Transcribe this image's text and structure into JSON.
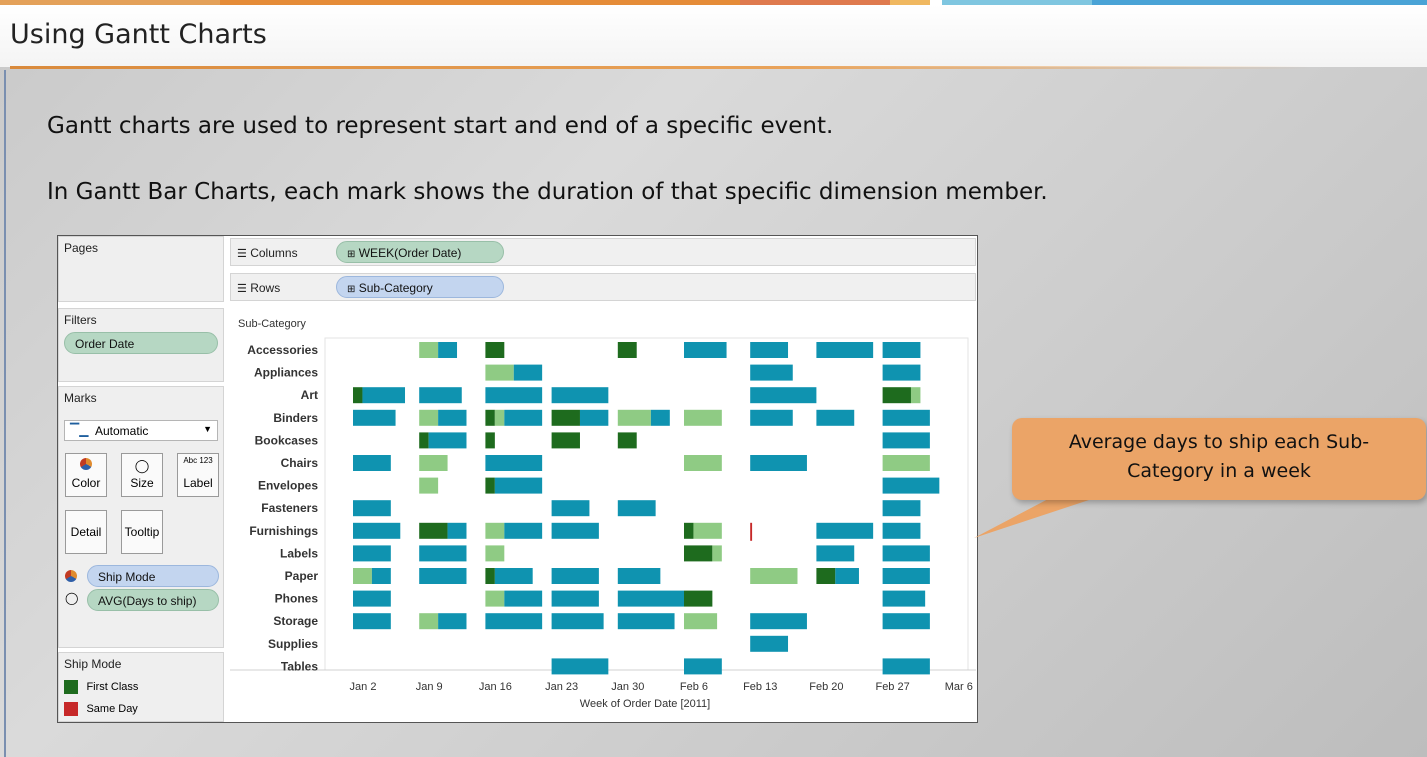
{
  "slide": {
    "title": "Using Gantt Charts",
    "line1": "Gantt charts are used to represent start and end of a specific event.",
    "line2": "In Gantt Bar Charts, each mark shows the duration of that specific dimension member."
  },
  "tableau": {
    "pages_title": "Pages",
    "filters_title": "Filters",
    "filter_pill": "Order Date",
    "marks_title": "Marks",
    "mark_type": "Automatic",
    "buttons": {
      "color": "Color",
      "size": "Size",
      "label": "Label",
      "detail": "Detail",
      "tooltip": "Tooltip"
    },
    "label_icon": "Abc 123",
    "color_pill": "Ship Mode",
    "size_pill": "AVG(Days to ship)",
    "columns_label": "Columns",
    "columns_pill": "WEEK(Order Date)",
    "rows_label": "Rows",
    "rows_pill": "Sub-Category",
    "legend_title": "Ship Mode",
    "legend_items": [
      {
        "label": "First Class",
        "color": "#1e6b1e"
      },
      {
        "label": "Same Day",
        "color": "#c62828"
      }
    ]
  },
  "callout": {
    "line1": "Average days to ship each Sub-",
    "line2": "Category in a week"
  },
  "colors": {
    "first_class": "#1e6b1e",
    "same_day": "#c62828",
    "second_class": "#8fcb84",
    "standard_class": "#0f93b0"
  },
  "chart_data": {
    "type": "gantt",
    "row_header": "Sub-Category",
    "xlabel": "Week of Order Date [2011]",
    "x_ticks": [
      "Jan 2",
      "Jan 9",
      "Jan 16",
      "Jan 23",
      "Jan 30",
      "Feb 6",
      "Feb 13",
      "Feb 20",
      "Feb 27",
      "Mar 6"
    ],
    "categories": [
      "Accessories",
      "Appliances",
      "Art",
      "Binders",
      "Bookcases",
      "Chairs",
      "Envelopes",
      "Fasteners",
      "Furnishings",
      "Labels",
      "Paper",
      "Phones",
      "Storage",
      "Supplies",
      "Tables"
    ],
    "segments_note": "Each bar: week index (0 = Jan 2), start offset and duration in days, ship mode",
    "bars": [
      {
        "row": 0,
        "week": 1,
        "segs": [
          [
            "second_class",
            0,
            2
          ],
          [
            "standard_class",
            2,
            2
          ]
        ]
      },
      {
        "row": 0,
        "week": 2,
        "segs": [
          [
            "first_class",
            0,
            2
          ]
        ]
      },
      {
        "row": 0,
        "week": 4,
        "segs": [
          [
            "first_class",
            0,
            2
          ]
        ]
      },
      {
        "row": 0,
        "week": 5,
        "segs": [
          [
            "standard_class",
            0,
            4.5
          ]
        ]
      },
      {
        "row": 0,
        "week": 6,
        "segs": [
          [
            "standard_class",
            0,
            4
          ]
        ]
      },
      {
        "row": 0,
        "week": 7,
        "segs": [
          [
            "standard_class",
            0,
            6
          ]
        ]
      },
      {
        "row": 0,
        "week": 8,
        "segs": [
          [
            "standard_class",
            0,
            4
          ]
        ]
      },
      {
        "row": 1,
        "week": 2,
        "segs": [
          [
            "second_class",
            0,
            3
          ],
          [
            "standard_class",
            3,
            3
          ]
        ]
      },
      {
        "row": 1,
        "week": 6,
        "segs": [
          [
            "standard_class",
            0,
            4.5
          ]
        ]
      },
      {
        "row": 1,
        "week": 8,
        "segs": [
          [
            "standard_class",
            0,
            4
          ]
        ]
      },
      {
        "row": 2,
        "week": 0,
        "segs": [
          [
            "first_class",
            0,
            1
          ],
          [
            "standard_class",
            1,
            4.5
          ]
        ]
      },
      {
        "row": 2,
        "week": 1,
        "segs": [
          [
            "standard_class",
            0,
            4.5
          ]
        ]
      },
      {
        "row": 2,
        "week": 2,
        "segs": [
          [
            "standard_class",
            0,
            6
          ]
        ]
      },
      {
        "row": 2,
        "week": 3,
        "segs": [
          [
            "standard_class",
            0,
            6
          ]
        ]
      },
      {
        "row": 2,
        "week": 6,
        "segs": [
          [
            "standard_class",
            0,
            7
          ]
        ]
      },
      {
        "row": 2,
        "week": 8,
        "segs": [
          [
            "first_class",
            0,
            3
          ],
          [
            "second_class",
            3,
            1
          ]
        ]
      },
      {
        "row": 3,
        "week": 0,
        "segs": [
          [
            "standard_class",
            0,
            4.5
          ]
        ]
      },
      {
        "row": 3,
        "week": 1,
        "segs": [
          [
            "second_class",
            0,
            2
          ],
          [
            "standard_class",
            2,
            3
          ]
        ]
      },
      {
        "row": 3,
        "week": 2,
        "segs": [
          [
            "first_class",
            0,
            1
          ],
          [
            "second_class",
            1,
            1
          ],
          [
            "standard_class",
            2,
            4
          ]
        ]
      },
      {
        "row": 3,
        "week": 3,
        "segs": [
          [
            "first_class",
            0,
            3
          ],
          [
            "standard_class",
            3,
            3
          ]
        ]
      },
      {
        "row": 3,
        "week": 4,
        "segs": [
          [
            "second_class",
            0,
            3.5
          ],
          [
            "standard_class",
            3.5,
            2
          ]
        ]
      },
      {
        "row": 3,
        "week": 5,
        "segs": [
          [
            "second_class",
            0,
            4
          ]
        ]
      },
      {
        "row": 3,
        "week": 6,
        "segs": [
          [
            "standard_class",
            0,
            4.5
          ]
        ]
      },
      {
        "row": 3,
        "week": 7,
        "segs": [
          [
            "standard_class",
            0,
            4
          ]
        ]
      },
      {
        "row": 3,
        "week": 8,
        "segs": [
          [
            "standard_class",
            0,
            5
          ]
        ]
      },
      {
        "row": 4,
        "week": 1,
        "segs": [
          [
            "first_class",
            0,
            1
          ],
          [
            "standard_class",
            1,
            4
          ]
        ]
      },
      {
        "row": 4,
        "week": 2,
        "segs": [
          [
            "first_class",
            0,
            1
          ]
        ]
      },
      {
        "row": 4,
        "week": 3,
        "segs": [
          [
            "first_class",
            0,
            3
          ]
        ]
      },
      {
        "row": 4,
        "week": 4,
        "segs": [
          [
            "first_class",
            0,
            2
          ]
        ]
      },
      {
        "row": 4,
        "week": 8,
        "segs": [
          [
            "standard_class",
            0,
            5
          ]
        ]
      },
      {
        "row": 5,
        "week": 0,
        "segs": [
          [
            "standard_class",
            0,
            4
          ]
        ]
      },
      {
        "row": 5,
        "week": 1,
        "segs": [
          [
            "second_class",
            0,
            3
          ]
        ]
      },
      {
        "row": 5,
        "week": 2,
        "segs": [
          [
            "standard_class",
            0,
            6
          ]
        ]
      },
      {
        "row": 5,
        "week": 5,
        "segs": [
          [
            "second_class",
            0,
            4
          ]
        ]
      },
      {
        "row": 5,
        "week": 6,
        "segs": [
          [
            "standard_class",
            0,
            6
          ]
        ]
      },
      {
        "row": 5,
        "week": 8,
        "segs": [
          [
            "second_class",
            0,
            5
          ]
        ]
      },
      {
        "row": 6,
        "week": 1,
        "segs": [
          [
            "second_class",
            0,
            2
          ]
        ]
      },
      {
        "row": 6,
        "week": 2,
        "segs": [
          [
            "first_class",
            0,
            1
          ],
          [
            "standard_class",
            1,
            5
          ]
        ]
      },
      {
        "row": 6,
        "week": 8,
        "segs": [
          [
            "standard_class",
            0,
            6
          ]
        ]
      },
      {
        "row": 7,
        "week": 0,
        "segs": [
          [
            "standard_class",
            0,
            4
          ]
        ]
      },
      {
        "row": 7,
        "week": 3,
        "segs": [
          [
            "standard_class",
            0,
            4
          ]
        ]
      },
      {
        "row": 7,
        "week": 4,
        "segs": [
          [
            "standard_class",
            0,
            4
          ]
        ]
      },
      {
        "row": 7,
        "week": 8,
        "segs": [
          [
            "standard_class",
            0,
            4
          ]
        ]
      },
      {
        "row": 8,
        "week": 0,
        "segs": [
          [
            "standard_class",
            0,
            5
          ]
        ]
      },
      {
        "row": 8,
        "week": 1,
        "segs": [
          [
            "first_class",
            0,
            3
          ],
          [
            "standard_class",
            3,
            2
          ]
        ]
      },
      {
        "row": 8,
        "week": 2,
        "segs": [
          [
            "second_class",
            0,
            2
          ],
          [
            "standard_class",
            2,
            4
          ]
        ]
      },
      {
        "row": 8,
        "week": 3,
        "segs": [
          [
            "standard_class",
            0,
            5
          ]
        ]
      },
      {
        "row": 8,
        "week": 5,
        "segs": [
          [
            "first_class",
            0,
            1
          ],
          [
            "second_class",
            1,
            3
          ]
        ]
      },
      {
        "row": 8,
        "week": 6,
        "segs": [
          [
            "same_day",
            0,
            0.2
          ]
        ]
      },
      {
        "row": 8,
        "week": 7,
        "segs": [
          [
            "standard_class",
            0,
            6
          ]
        ]
      },
      {
        "row": 8,
        "week": 8,
        "segs": [
          [
            "standard_class",
            0,
            4
          ]
        ]
      },
      {
        "row": 9,
        "week": 0,
        "segs": [
          [
            "standard_class",
            0,
            4
          ]
        ]
      },
      {
        "row": 9,
        "week": 1,
        "segs": [
          [
            "standard_class",
            0,
            5
          ]
        ]
      },
      {
        "row": 9,
        "week": 2,
        "segs": [
          [
            "second_class",
            0,
            2
          ]
        ]
      },
      {
        "row": 9,
        "week": 5,
        "segs": [
          [
            "first_class",
            0,
            3
          ],
          [
            "second_class",
            3,
            1
          ]
        ]
      },
      {
        "row": 9,
        "week": 7,
        "segs": [
          [
            "standard_class",
            0,
            4
          ]
        ]
      },
      {
        "row": 9,
        "week": 8,
        "segs": [
          [
            "standard_class",
            0,
            5
          ]
        ]
      },
      {
        "row": 10,
        "week": 0,
        "segs": [
          [
            "second_class",
            0,
            2
          ],
          [
            "standard_class",
            2,
            2
          ]
        ]
      },
      {
        "row": 10,
        "week": 1,
        "segs": [
          [
            "standard_class",
            0,
            5
          ]
        ]
      },
      {
        "row": 10,
        "week": 2,
        "segs": [
          [
            "first_class",
            0,
            1
          ],
          [
            "standard_class",
            1,
            4
          ]
        ]
      },
      {
        "row": 10,
        "week": 3,
        "segs": [
          [
            "standard_class",
            0,
            5
          ]
        ]
      },
      {
        "row": 10,
        "week": 4,
        "segs": [
          [
            "standard_class",
            0,
            4.5
          ]
        ]
      },
      {
        "row": 10,
        "week": 6,
        "segs": [
          [
            "second_class",
            0,
            5
          ]
        ]
      },
      {
        "row": 10,
        "week": 7,
        "segs": [
          [
            "first_class",
            0,
            2
          ],
          [
            "standard_class",
            2,
            2.5
          ]
        ]
      },
      {
        "row": 10,
        "week": 8,
        "segs": [
          [
            "standard_class",
            0,
            5
          ]
        ]
      },
      {
        "row": 11,
        "week": 0,
        "segs": [
          [
            "standard_class",
            0,
            4
          ]
        ]
      },
      {
        "row": 11,
        "week": 2,
        "segs": [
          [
            "second_class",
            0,
            2
          ],
          [
            "standard_class",
            2,
            4
          ]
        ]
      },
      {
        "row": 11,
        "week": 3,
        "segs": [
          [
            "standard_class",
            0,
            5
          ]
        ]
      },
      {
        "row": 11,
        "week": 4,
        "segs": [
          [
            "standard_class",
            0,
            7
          ]
        ]
      },
      {
        "row": 11,
        "week": 5,
        "segs": [
          [
            "first_class",
            0,
            3
          ]
        ]
      },
      {
        "row": 11,
        "week": 8,
        "segs": [
          [
            "standard_class",
            0,
            4.5
          ]
        ]
      },
      {
        "row": 12,
        "week": 0,
        "segs": [
          [
            "standard_class",
            0,
            4
          ]
        ]
      },
      {
        "row": 12,
        "week": 1,
        "segs": [
          [
            "second_class",
            0,
            2
          ],
          [
            "standard_class",
            2,
            3
          ]
        ]
      },
      {
        "row": 12,
        "week": 2,
        "segs": [
          [
            "standard_class",
            0,
            6
          ]
        ]
      },
      {
        "row": 12,
        "week": 3,
        "segs": [
          [
            "standard_class",
            0,
            5.5
          ]
        ]
      },
      {
        "row": 12,
        "week": 4,
        "segs": [
          [
            "standard_class",
            0,
            6
          ]
        ]
      },
      {
        "row": 12,
        "week": 5,
        "segs": [
          [
            "second_class",
            0,
            3.5
          ]
        ]
      },
      {
        "row": 12,
        "week": 6,
        "segs": [
          [
            "standard_class",
            0,
            6
          ]
        ]
      },
      {
        "row": 12,
        "week": 8,
        "segs": [
          [
            "standard_class",
            0,
            5
          ]
        ]
      },
      {
        "row": 13,
        "week": 6,
        "segs": [
          [
            "standard_class",
            0,
            4
          ]
        ]
      },
      {
        "row": 14,
        "week": 3,
        "segs": [
          [
            "standard_class",
            0,
            6
          ]
        ]
      },
      {
        "row": 14,
        "week": 5,
        "segs": [
          [
            "standard_class",
            0,
            4
          ]
        ]
      },
      {
        "row": 14,
        "week": 8,
        "segs": [
          [
            "standard_class",
            0,
            5
          ]
        ]
      }
    ]
  }
}
